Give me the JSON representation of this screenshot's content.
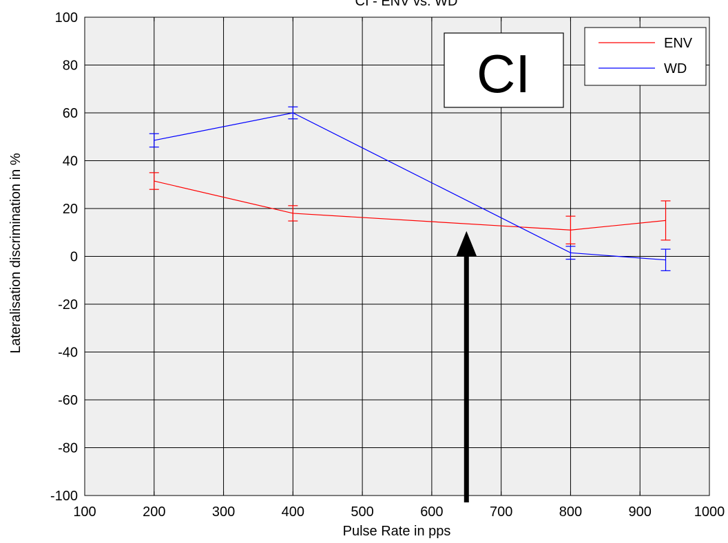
{
  "chart_data": {
    "type": "line",
    "title": "CI - ENV vs. WD",
    "xlabel": "Pulse Rate in pps",
    "ylabel": "Lateralisation discrimination in %",
    "xlim": [
      100,
      1000
    ],
    "ylim": [
      -100,
      100
    ],
    "xticks": [
      100,
      200,
      300,
      400,
      500,
      600,
      700,
      800,
      900,
      1000
    ],
    "yticks": [
      -100,
      -80,
      -60,
      -40,
      -20,
      0,
      20,
      40,
      60,
      80,
      100
    ],
    "grid": true,
    "legend_position": "top-right",
    "background": "#efefef",
    "series": [
      {
        "name": "ENV",
        "color": "#ff0000",
        "x": [
          200,
          400,
          800,
          937
        ],
        "y": [
          31.5,
          18,
          11,
          15
        ],
        "error": [
          3.5,
          3.2,
          5.8,
          8.2
        ]
      },
      {
        "name": "WD",
        "color": "#0000ff",
        "x": [
          200,
          400,
          800,
          937
        ],
        "y": [
          48.5,
          60,
          1.5,
          -1.5
        ],
        "error": [
          2.8,
          2.5,
          2.7,
          4.5
        ]
      }
    ],
    "annotations": [
      {
        "type": "text-box",
        "text": "CI"
      },
      {
        "type": "arrow",
        "x": 650,
        "y_from": -100,
        "y_to": 10,
        "color": "#000000"
      }
    ]
  }
}
